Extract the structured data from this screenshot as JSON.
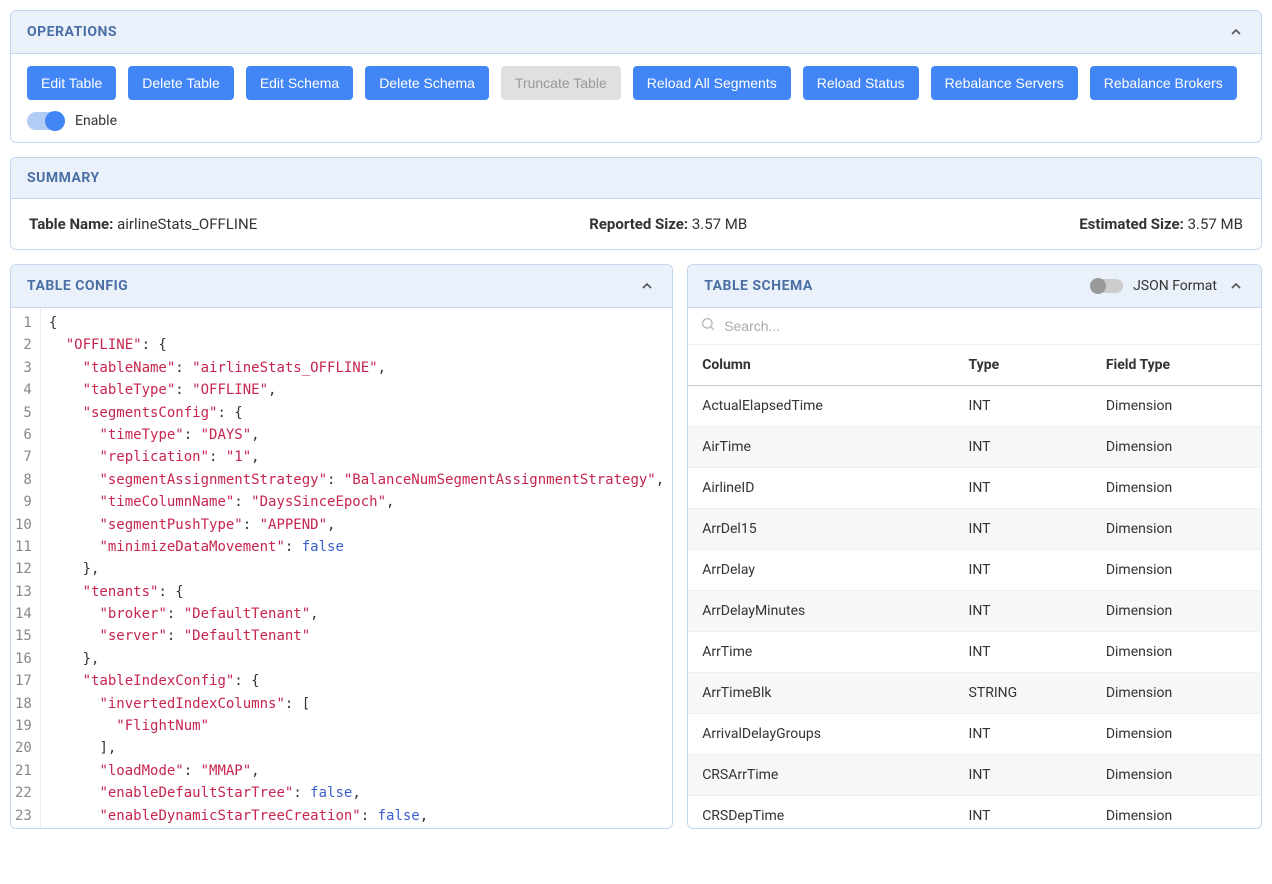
{
  "operations": {
    "title": "OPERATIONS",
    "buttons": [
      {
        "label": "Edit Table",
        "disabled": false
      },
      {
        "label": "Delete Table",
        "disabled": false
      },
      {
        "label": "Edit Schema",
        "disabled": false
      },
      {
        "label": "Delete Schema",
        "disabled": false
      },
      {
        "label": "Truncate Table",
        "disabled": true
      },
      {
        "label": "Reload All Segments",
        "disabled": false
      },
      {
        "label": "Reload Status",
        "disabled": false
      },
      {
        "label": "Rebalance Servers",
        "disabled": false
      },
      {
        "label": "Rebalance Brokers",
        "disabled": false
      }
    ],
    "enable_label": "Enable",
    "enable_on": true
  },
  "summary": {
    "title": "SUMMARY",
    "table_name_label": "Table Name:",
    "table_name_value": "airlineStats_OFFLINE",
    "reported_size_label": "Reported Size:",
    "reported_size_value": "3.57 MB",
    "estimated_size_label": "Estimated Size:",
    "estimated_size_value": "3.57 MB"
  },
  "table_config": {
    "title": "TABLE CONFIG",
    "code_lines": [
      [
        {
          "t": "punc",
          "v": "{"
        }
      ],
      [
        {
          "t": "sp",
          "v": "  "
        },
        {
          "t": "key",
          "v": "\"OFFLINE\""
        },
        {
          "t": "punc",
          "v": ": {"
        }
      ],
      [
        {
          "t": "sp",
          "v": "    "
        },
        {
          "t": "key",
          "v": "\"tableName\""
        },
        {
          "t": "punc",
          "v": ": "
        },
        {
          "t": "str",
          "v": "\"airlineStats_OFFLINE\""
        },
        {
          "t": "punc",
          "v": ","
        }
      ],
      [
        {
          "t": "sp",
          "v": "    "
        },
        {
          "t": "key",
          "v": "\"tableType\""
        },
        {
          "t": "punc",
          "v": ": "
        },
        {
          "t": "str",
          "v": "\"OFFLINE\""
        },
        {
          "t": "punc",
          "v": ","
        }
      ],
      [
        {
          "t": "sp",
          "v": "    "
        },
        {
          "t": "key",
          "v": "\"segmentsConfig\""
        },
        {
          "t": "punc",
          "v": ": {"
        }
      ],
      [
        {
          "t": "sp",
          "v": "      "
        },
        {
          "t": "key",
          "v": "\"timeType\""
        },
        {
          "t": "punc",
          "v": ": "
        },
        {
          "t": "str",
          "v": "\"DAYS\""
        },
        {
          "t": "punc",
          "v": ","
        }
      ],
      [
        {
          "t": "sp",
          "v": "      "
        },
        {
          "t": "key",
          "v": "\"replication\""
        },
        {
          "t": "punc",
          "v": ": "
        },
        {
          "t": "str",
          "v": "\"1\""
        },
        {
          "t": "punc",
          "v": ","
        }
      ],
      [
        {
          "t": "sp",
          "v": "      "
        },
        {
          "t": "key",
          "v": "\"segmentAssignmentStrategy\""
        },
        {
          "t": "punc",
          "v": ": "
        },
        {
          "t": "str",
          "v": "\"BalanceNumSegmentAssignmentStrategy\""
        },
        {
          "t": "punc",
          "v": ","
        }
      ],
      [
        {
          "t": "sp",
          "v": "      "
        },
        {
          "t": "key",
          "v": "\"timeColumnName\""
        },
        {
          "t": "punc",
          "v": ": "
        },
        {
          "t": "str",
          "v": "\"DaysSinceEpoch\""
        },
        {
          "t": "punc",
          "v": ","
        }
      ],
      [
        {
          "t": "sp",
          "v": "      "
        },
        {
          "t": "key",
          "v": "\"segmentPushType\""
        },
        {
          "t": "punc",
          "v": ": "
        },
        {
          "t": "str",
          "v": "\"APPEND\""
        },
        {
          "t": "punc",
          "v": ","
        }
      ],
      [
        {
          "t": "sp",
          "v": "      "
        },
        {
          "t": "key",
          "v": "\"minimizeDataMovement\""
        },
        {
          "t": "punc",
          "v": ": "
        },
        {
          "t": "bool",
          "v": "false"
        }
      ],
      [
        {
          "t": "sp",
          "v": "    "
        },
        {
          "t": "punc",
          "v": "},"
        }
      ],
      [
        {
          "t": "sp",
          "v": "    "
        },
        {
          "t": "key",
          "v": "\"tenants\""
        },
        {
          "t": "punc",
          "v": ": {"
        }
      ],
      [
        {
          "t": "sp",
          "v": "      "
        },
        {
          "t": "key",
          "v": "\"broker\""
        },
        {
          "t": "punc",
          "v": ": "
        },
        {
          "t": "str",
          "v": "\"DefaultTenant\""
        },
        {
          "t": "punc",
          "v": ","
        }
      ],
      [
        {
          "t": "sp",
          "v": "      "
        },
        {
          "t": "key",
          "v": "\"server\""
        },
        {
          "t": "punc",
          "v": ": "
        },
        {
          "t": "str",
          "v": "\"DefaultTenant\""
        }
      ],
      [
        {
          "t": "sp",
          "v": "    "
        },
        {
          "t": "punc",
          "v": "},"
        }
      ],
      [
        {
          "t": "sp",
          "v": "    "
        },
        {
          "t": "key",
          "v": "\"tableIndexConfig\""
        },
        {
          "t": "punc",
          "v": ": {"
        }
      ],
      [
        {
          "t": "sp",
          "v": "      "
        },
        {
          "t": "key",
          "v": "\"invertedIndexColumns\""
        },
        {
          "t": "punc",
          "v": ": ["
        }
      ],
      [
        {
          "t": "sp",
          "v": "        "
        },
        {
          "t": "str",
          "v": "\"FlightNum\""
        }
      ],
      [
        {
          "t": "sp",
          "v": "      "
        },
        {
          "t": "punc",
          "v": "],"
        }
      ],
      [
        {
          "t": "sp",
          "v": "      "
        },
        {
          "t": "key",
          "v": "\"loadMode\""
        },
        {
          "t": "punc",
          "v": ": "
        },
        {
          "t": "str",
          "v": "\"MMAP\""
        },
        {
          "t": "punc",
          "v": ","
        }
      ],
      [
        {
          "t": "sp",
          "v": "      "
        },
        {
          "t": "key",
          "v": "\"enableDefaultStarTree\""
        },
        {
          "t": "punc",
          "v": ": "
        },
        {
          "t": "bool",
          "v": "false"
        },
        {
          "t": "punc",
          "v": ","
        }
      ],
      [
        {
          "t": "sp",
          "v": "      "
        },
        {
          "t": "key",
          "v": "\"enableDynamicStarTreeCreation\""
        },
        {
          "t": "punc",
          "v": ": "
        },
        {
          "t": "bool",
          "v": "false"
        },
        {
          "t": "punc",
          "v": ","
        }
      ]
    ]
  },
  "table_schema": {
    "title": "TABLE SCHEMA",
    "json_format_label": "JSON Format",
    "json_format_on": false,
    "search_placeholder": "Search...",
    "columns": [
      "Column",
      "Type",
      "Field Type"
    ],
    "rows": [
      [
        "ActualElapsedTime",
        "INT",
        "Dimension"
      ],
      [
        "AirTime",
        "INT",
        "Dimension"
      ],
      [
        "AirlineID",
        "INT",
        "Dimension"
      ],
      [
        "ArrDel15",
        "INT",
        "Dimension"
      ],
      [
        "ArrDelay",
        "INT",
        "Dimension"
      ],
      [
        "ArrDelayMinutes",
        "INT",
        "Dimension"
      ],
      [
        "ArrTime",
        "INT",
        "Dimension"
      ],
      [
        "ArrTimeBlk",
        "STRING",
        "Dimension"
      ],
      [
        "ArrivalDelayGroups",
        "INT",
        "Dimension"
      ],
      [
        "CRSArrTime",
        "INT",
        "Dimension"
      ],
      [
        "CRSDepTime",
        "INT",
        "Dimension"
      ]
    ]
  },
  "colors": {
    "panel_header_bg": "#eaf1fb",
    "panel_border": "#c5d6f0",
    "panel_title": "#4a6fa5",
    "button_bg": "#4285f4",
    "button_disabled_bg": "#e0e0e0",
    "token_key": "#c7254e",
    "token_str": "#c7254e",
    "token_bool": "#3a5fcd"
  }
}
